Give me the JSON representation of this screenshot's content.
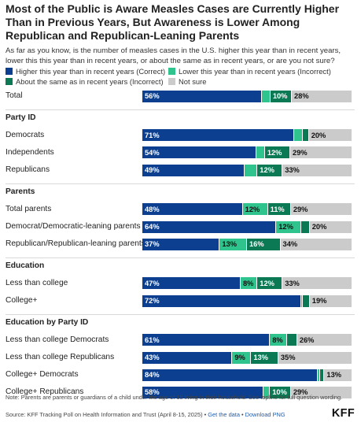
{
  "title": "Most of the Public is Aware Measles Cases are Currently Higher Than in Previous Years, But Awareness is Lower Among Republican and Republican-Leaning Parents",
  "question": "As far as you know, is the number of measles cases in the U.S. higher this year than in recent years, lower this this year than in recent years, or about the same as in recent years, or are you not sure?",
  "colors": {
    "higher": "#0c3f8f",
    "lower": "#2fc38d",
    "same": "#0b7a54",
    "not_sure": "#cbcbcb"
  },
  "legend": [
    {
      "key": "higher",
      "label": "Higher this year than in recent years (Correct)"
    },
    {
      "key": "lower",
      "label": "Lower this year than in recent years (Incorrect)"
    },
    {
      "key": "same",
      "label": "About the same as in recent years (Incorrect)"
    },
    {
      "key": "not_sure",
      "label": "Not sure"
    }
  ],
  "chart_data": {
    "type": "bar",
    "orientation": "horizontal",
    "stacked": true,
    "title": "Most of the Public is Aware Measles Cases are Currently Higher Than in Previous Years, But Awareness is Lower Among Republican and Republican-Leaning Parents",
    "unit": "%",
    "series_order": [
      "higher",
      "lower",
      "same",
      "not_sure"
    ],
    "series_names": [
      "Higher this year than in recent years (Correct)",
      "Lower this year than in recent years (Incorrect)",
      "About the same as in recent years (Incorrect)",
      "Not sure"
    ],
    "sections": [
      {
        "header": "",
        "rows": [
          {
            "label": "Total",
            "values": [
              56,
              4,
              10,
              28
            ],
            "labels": [
              "56%",
              "",
              "10%",
              "28%"
            ]
          }
        ]
      },
      {
        "header": "Party ID",
        "rows": [
          {
            "label": "Democrats",
            "values": [
              71,
              4,
              3,
              20
            ],
            "labels": [
              "71%",
              "",
              "",
              "20%"
            ]
          },
          {
            "label": "Independents",
            "values": [
              54,
              4,
              12,
              29
            ],
            "labels": [
              "54%",
              "",
              "12%",
              "29%"
            ]
          },
          {
            "label": "Republicans",
            "values": [
              49,
              6,
              12,
              33
            ],
            "labels": [
              "49%",
              "",
              "12%",
              "33%"
            ]
          }
        ]
      },
      {
        "header": "Parents",
        "rows": [
          {
            "label": "Total parents",
            "values": [
              48,
              12,
              11,
              29
            ],
            "labels": [
              "48%",
              "12%",
              "11%",
              "29%"
            ]
          },
          {
            "label": "Democrat/Democratic-leaning parents",
            "values": [
              64,
              12,
              4,
              20
            ],
            "labels": [
              "64%",
              "12%",
              "",
              "20%"
            ]
          },
          {
            "label": "Republican/Republican-leaning parents",
            "values": [
              37,
              13,
              16,
              34
            ],
            "labels": [
              "37%",
              "13%",
              "16%",
              "34%"
            ]
          }
        ]
      },
      {
        "header": "Education",
        "rows": [
          {
            "label": "Less than college",
            "values": [
              47,
              8,
              12,
              33
            ],
            "labels": [
              "47%",
              "8%",
              "12%",
              "33%"
            ]
          },
          {
            "label": "College+",
            "values": [
              72,
              1,
              3,
              19
            ],
            "labels": [
              "72%",
              "",
              "",
              "19%"
            ]
          }
        ]
      },
      {
        "header": "Education by Party ID",
        "rows": [
          {
            "label": "Less than college Democrats",
            "values": [
              61,
              8,
              5,
              26
            ],
            "labels": [
              "61%",
              "8%",
              "",
              "26%"
            ]
          },
          {
            "label": "Less than college Republicans",
            "values": [
              43,
              9,
              13,
              35
            ],
            "labels": [
              "43%",
              "9%",
              "13%",
              "35%"
            ]
          },
          {
            "label": "College+ Democrats",
            "values": [
              84,
              1,
              2,
              13
            ],
            "labels": [
              "84%",
              "",
              "",
              "13%"
            ]
          },
          {
            "label": "College+ Republicans",
            "values": [
              58,
              3,
              10,
              29
            ],
            "labels": [
              "58%",
              "",
              "10%",
              "29%"
            ]
          }
        ]
      }
    ]
  },
  "note": "Note: Parents are parents or guardians of a child under the age of 18 living in their household. See topline for full question wording.",
  "source": {
    "text": "Source: KFF Tracking Poll on Health Information and Trust (April 8-15, 2025) • ",
    "get_data": "Get the data",
    "separator": " • ",
    "download": "Download PNG"
  },
  "logo": "KFF"
}
